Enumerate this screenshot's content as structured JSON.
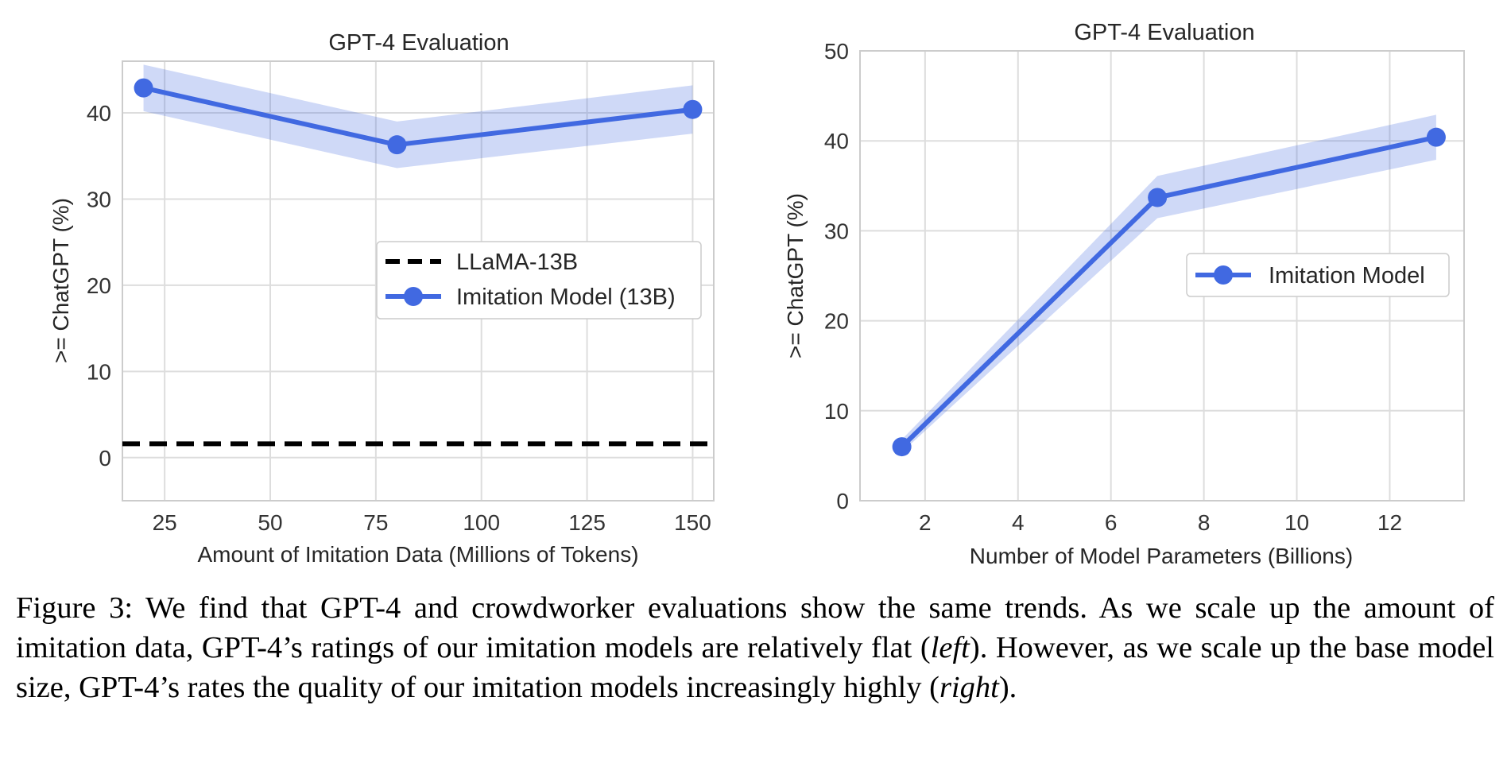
{
  "chart_data": [
    {
      "type": "line",
      "title": "GPT-4 Evaluation",
      "xlabel": "Amount of Imitation Data (Millions of Tokens)",
      "ylabel": ">= ChatGPT (%)",
      "xlim": [
        15,
        155
      ],
      "ylim": [
        -5,
        46
      ],
      "xticks": [
        25,
        50,
        75,
        100,
        125,
        150
      ],
      "yticks": [
        0,
        10,
        20,
        30,
        40
      ],
      "grid": true,
      "legend_position": "center-right",
      "series": [
        {
          "name": "LLaMA-13B",
          "style": "dashed",
          "color": "#000000",
          "x": [
            15,
            155
          ],
          "y": [
            1.6,
            1.6
          ]
        },
        {
          "name": "Imitation Model (13B)",
          "style": "solid-markers",
          "color": "#4169E1",
          "x": [
            20,
            80,
            150
          ],
          "y": [
            42.9,
            36.3,
            40.4
          ],
          "ci_low": [
            40.2,
            33.6,
            37.6
          ],
          "ci_high": [
            45.6,
            39.0,
            43.2
          ]
        }
      ]
    },
    {
      "type": "line",
      "title": "GPT-4 Evaluation",
      "xlabel": "Number of Model Parameters (Billions)",
      "ylabel": ">= ChatGPT (%)",
      "xlim": [
        0.6,
        13.6
      ],
      "ylim": [
        0,
        50
      ],
      "xticks": [
        2,
        4,
        6,
        8,
        10,
        12
      ],
      "yticks": [
        0,
        10,
        20,
        30,
        40,
        50
      ],
      "grid": true,
      "legend_position": "center-right",
      "series": [
        {
          "name": "Imitation Model",
          "style": "solid-markers",
          "color": "#4169E1",
          "x": [
            1.5,
            7,
            13
          ],
          "y": [
            6.0,
            33.7,
            40.4
          ],
          "ci_low": [
            5.4,
            31.4,
            37.9
          ],
          "ci_high": [
            6.8,
            36.1,
            42.9
          ]
        }
      ]
    }
  ],
  "caption": {
    "prefix": "Figure 3: We find that GPT-4 and crowdworker evaluations show the same trends. As we scale up the amount of imitation data, GPT-4’s ratings of our imitation models are relatively flat (",
    "left_word": "left",
    "middle": "). However, as we scale up the base model size, GPT-4’s rates the quality of our imitation models increasingly highly (",
    "right_word": "right",
    "suffix": ")."
  }
}
